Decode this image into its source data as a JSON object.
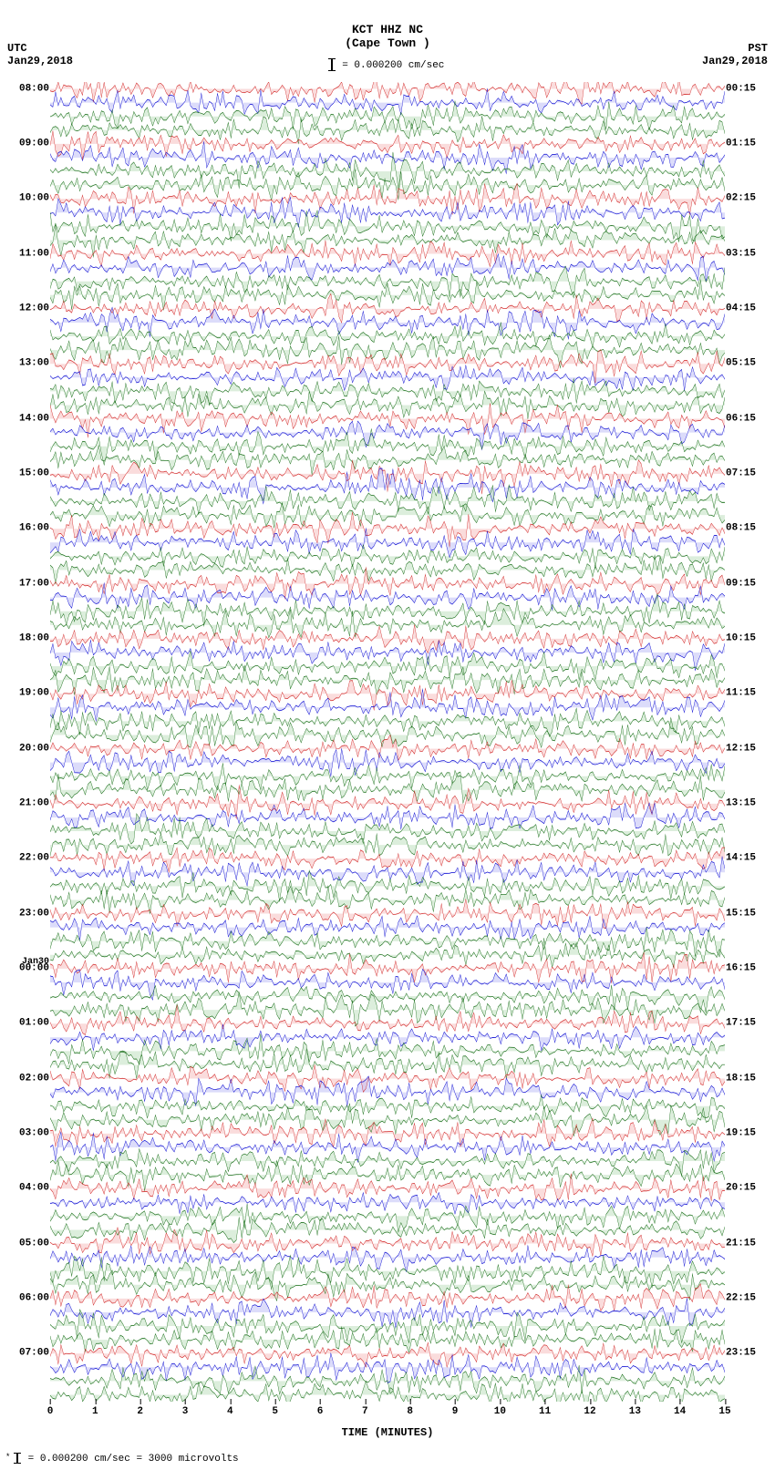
{
  "type": "helicorder-seismogram",
  "station": "KCT HHZ NC",
  "location": "(Cape Town )",
  "scale_text": "= 0.000200 cm/sec",
  "tz_left": "UTC",
  "tz_right": "PST",
  "date_left": "Jan29,2018",
  "date_right": "Jan29,2018",
  "utc_hours": [
    "08:00",
    "09:00",
    "10:00",
    "11:00",
    "12:00",
    "13:00",
    "14:00",
    "15:00",
    "16:00",
    "17:00",
    "18:00",
    "19:00",
    "20:00",
    "21:00",
    "22:00",
    "23:00",
    "00:00",
    "01:00",
    "02:00",
    "03:00",
    "04:00",
    "05:00",
    "06:00",
    "07:00"
  ],
  "utc_date_change_index": 16,
  "utc_date_change_label": "Jan30",
  "pst_hours": [
    "00:15",
    "01:15",
    "02:15",
    "03:15",
    "04:15",
    "05:15",
    "06:15",
    "07:15",
    "08:15",
    "09:15",
    "10:15",
    "11:15",
    "12:15",
    "13:15",
    "14:15",
    "15:15",
    "16:15",
    "17:15",
    "18:15",
    "19:15",
    "20:15",
    "21:15",
    "22:15",
    "23:15"
  ],
  "x_axis": {
    "title": "TIME (MINUTES)",
    "min": 0,
    "max": 15,
    "step": 1,
    "ticks": [
      "0",
      "1",
      "2",
      "3",
      "4",
      "5",
      "6",
      "7",
      "8",
      "9",
      "10",
      "11",
      "12",
      "13",
      "14",
      "15"
    ]
  },
  "footer": "= 0.000200 cm/sec =   3000 microvolts",
  "traces": {
    "lines_per_hour": 4,
    "total_lines": 96,
    "colors": [
      "#d02020",
      "#0000d0",
      "#106810",
      "#106810"
    ],
    "background_fill": [
      "#f5c0c0",
      "#c0c0f5",
      "#c0e0c0",
      "#c0e0c0"
    ],
    "amplitude_rel": 1.25,
    "line_width": 0.5,
    "samples_per_line": 250,
    "noise_seed": 982347
  },
  "background_color": "#ffffff",
  "label_color": "#000000",
  "label_fontsize": 11,
  "title_fontsize": 13
}
